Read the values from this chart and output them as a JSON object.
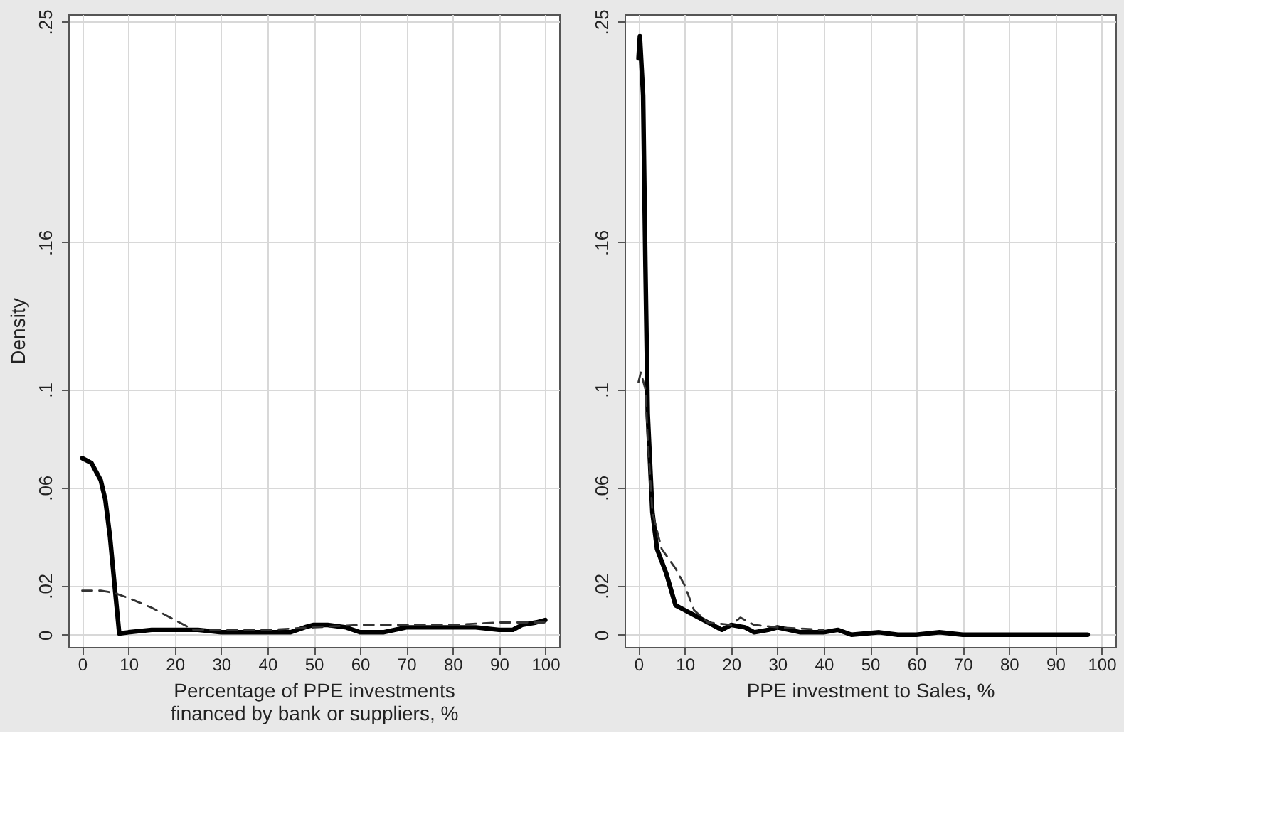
{
  "chart_data": [
    {
      "type": "line",
      "xlabel": "Percentage of PPE investments\nfinanced by bank or suppliers, %",
      "ylabel": "Density",
      "xlim": [
        -3,
        103
      ],
      "ylim": [
        -0.005,
        0.253
      ],
      "xticks": [
        0,
        10,
        20,
        30,
        40,
        50,
        60,
        70,
        80,
        90,
        100
      ],
      "yticks": [
        {
          "value": 0,
          "label": "0"
        },
        {
          "value": 0.02,
          "label": ".02"
        },
        {
          "value": 0.06,
          "label": ".06"
        },
        {
          "value": 0.1,
          "label": ".1"
        },
        {
          "value": 0.16,
          "label": ".16"
        },
        {
          "value": 0.25,
          "label": ".25"
        }
      ],
      "grid": true,
      "series": [
        {
          "color": "#000000",
          "line_style": "solid",
          "x": [
            0,
            2,
            4,
            5,
            6,
            7,
            8,
            10,
            15,
            20,
            25,
            30,
            35,
            40,
            45,
            48,
            50,
            53,
            57,
            60,
            65,
            70,
            75,
            80,
            85,
            90,
            93,
            95,
            98,
            100
          ],
          "values": [
            0.072,
            0.07,
            0.063,
            0.055,
            0.04,
            0.02,
            0.0005,
            0.001,
            0.002,
            0.002,
            0.002,
            0.001,
            0.001,
            0.001,
            0.001,
            0.003,
            0.004,
            0.004,
            0.003,
            0.001,
            0.001,
            0.003,
            0.003,
            0.003,
            0.003,
            0.002,
            0.002,
            0.004,
            0.005,
            0.006
          ]
        },
        {
          "color": "#333333",
          "line_style": "dashed",
          "x": [
            0,
            4,
            7,
            10,
            15,
            20,
            24,
            30,
            40,
            50,
            60,
            70,
            80,
            90,
            100
          ],
          "values": [
            0.018,
            0.018,
            0.017,
            0.015,
            0.011,
            0.006,
            0.002,
            0.002,
            0.002,
            0.003,
            0.004,
            0.004,
            0.004,
            0.005,
            0.005
          ]
        }
      ]
    },
    {
      "type": "line",
      "xlabel": "PPE investment to Sales, %",
      "xlim": [
        -3,
        103
      ],
      "ylim": [
        -0.005,
        0.253
      ],
      "xticks": [
        0,
        10,
        20,
        30,
        40,
        50,
        60,
        70,
        80,
        90,
        100
      ],
      "yticks": [
        {
          "value": 0,
          "label": "0"
        },
        {
          "value": 0.02,
          "label": ".02"
        },
        {
          "value": 0.06,
          "label": ".06"
        },
        {
          "value": 0.1,
          "label": ".1"
        },
        {
          "value": 0.16,
          "label": ".16"
        },
        {
          "value": 0.25,
          "label": ".25"
        }
      ],
      "grid": true,
      "series": [
        {
          "color": "#000000",
          "line_style": "solid",
          "x": [
            0,
            0.3,
            1,
            1.5,
            2,
            3,
            4,
            6,
            8,
            10,
            12,
            15,
            18,
            20,
            23,
            25,
            28,
            30,
            35,
            40,
            43,
            46,
            52,
            56,
            60,
            65,
            70,
            75,
            80,
            85,
            90,
            97
          ],
          "values": [
            0.235,
            0.244,
            0.22,
            0.15,
            0.09,
            0.05,
            0.035,
            0.025,
            0.012,
            0.01,
            0.008,
            0.005,
            0.002,
            0.004,
            0.003,
            0.001,
            0.002,
            0.003,
            0.001,
            0.001,
            0.002,
            0.0,
            0.001,
            0.0,
            0.0,
            0.001,
            0.0,
            0.0,
            0.0,
            0.0,
            0.0,
            0.0
          ]
        },
        {
          "color": "#333333",
          "line_style": "dashed",
          "x": [
            0,
            0.5,
            1.5,
            2,
            3,
            5,
            8,
            10,
            12,
            15,
            20,
            22,
            25,
            30,
            40
          ],
          "values": [
            0.103,
            0.107,
            0.1,
            0.08,
            0.05,
            0.035,
            0.027,
            0.02,
            0.01,
            0.005,
            0.004,
            0.007,
            0.004,
            0.003,
            0.002
          ]
        }
      ]
    }
  ]
}
